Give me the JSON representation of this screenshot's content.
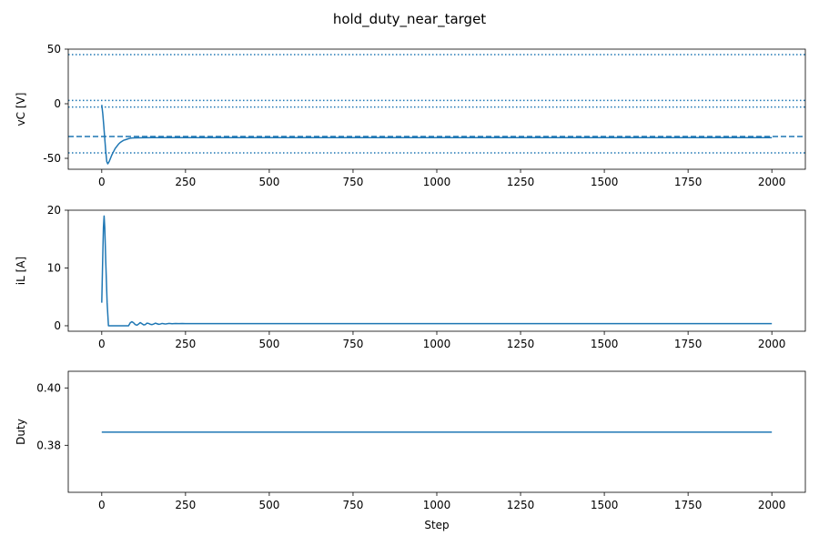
{
  "figure": {
    "suptitle": "hold_duty_near_target",
    "line_color": "#1f77b4"
  },
  "chart_data": [
    {
      "type": "line",
      "ylabel": "vC [V]",
      "xlabel": "",
      "xlim": [
        -100,
        2100
      ],
      "ylim": [
        -60,
        50
      ],
      "xticks": [
        0,
        250,
        500,
        750,
        1000,
        1250,
        1500,
        1750,
        2000
      ],
      "yticks": [
        -50,
        0,
        50
      ],
      "grid": false,
      "series": [
        {
          "x": [
            0,
            3,
            6,
            9,
            12,
            15,
            18,
            22,
            26,
            30,
            35,
            40,
            45,
            50,
            55,
            60,
            65,
            70,
            75,
            80,
            85,
            90,
            100,
            120,
            150,
            200,
            300,
            500,
            1000,
            1500,
            2000
          ],
          "y": [
            -1,
            -9,
            -20,
            -32,
            -44,
            -53,
            -55,
            -53,
            -50,
            -47,
            -44,
            -41,
            -39,
            -37,
            -35.5,
            -34.5,
            -33.5,
            -33,
            -32.5,
            -32,
            -31.6,
            -31.4,
            -31.2,
            -31.1,
            -31,
            -31,
            -31,
            -31,
            -31,
            -31,
            -31
          ]
        }
      ],
      "hlines": [
        {
          "y": 45,
          "style": "dotted"
        },
        {
          "y": 3,
          "style": "dotted"
        },
        {
          "y": -3,
          "style": "dotted"
        },
        {
          "y": -30,
          "style": "dashed"
        },
        {
          "y": -45,
          "style": "dotted"
        }
      ]
    },
    {
      "type": "line",
      "ylabel": "iL [A]",
      "xlabel": "",
      "xlim": [
        -100,
        2100
      ],
      "ylim": [
        -0.95,
        20
      ],
      "xticks": [
        0,
        250,
        500,
        750,
        1000,
        1250,
        1500,
        1750,
        2000
      ],
      "yticks": [
        0,
        10,
        20
      ],
      "grid": false,
      "series": [
        {
          "x": [
            0,
            3,
            5,
            7,
            9,
            12,
            16,
            20,
            25,
            40,
            60,
            80,
            85,
            90,
            95,
            100,
            105,
            110,
            115,
            120,
            125,
            130,
            135,
            140,
            145,
            150,
            155,
            160,
            165,
            170,
            175,
            180,
            185,
            190,
            195,
            200,
            210,
            220,
            230,
            240,
            250,
            300,
            500,
            1000,
            1500,
            2000
          ],
          "y": [
            4,
            12,
            17,
            19,
            17,
            11,
            4,
            0,
            0,
            0,
            0,
            0,
            0.5,
            0.7,
            0.5,
            0.2,
            0.1,
            0.3,
            0.55,
            0.35,
            0.15,
            0.2,
            0.45,
            0.4,
            0.25,
            0.2,
            0.3,
            0.45,
            0.35,
            0.25,
            0.3,
            0.4,
            0.35,
            0.3,
            0.35,
            0.4,
            0.35,
            0.38,
            0.36,
            0.38,
            0.37,
            0.37,
            0.37,
            0.37,
            0.37,
            0.37
          ]
        }
      ]
    },
    {
      "type": "line",
      "ylabel": "Duty",
      "xlabel": "Step",
      "xlim": [
        -100,
        2100
      ],
      "ylim": [
        0.3636,
        0.4058
      ],
      "xticks": [
        0,
        250,
        500,
        750,
        1000,
        1250,
        1500,
        1750,
        2000
      ],
      "yticks": [
        0.38,
        0.4
      ],
      "ytick_labels": [
        "0.38",
        "0.40"
      ],
      "grid": false,
      "series": [
        {
          "x": [
            0,
            2000
          ],
          "y": [
            0.3846,
            0.3846
          ]
        }
      ]
    }
  ]
}
